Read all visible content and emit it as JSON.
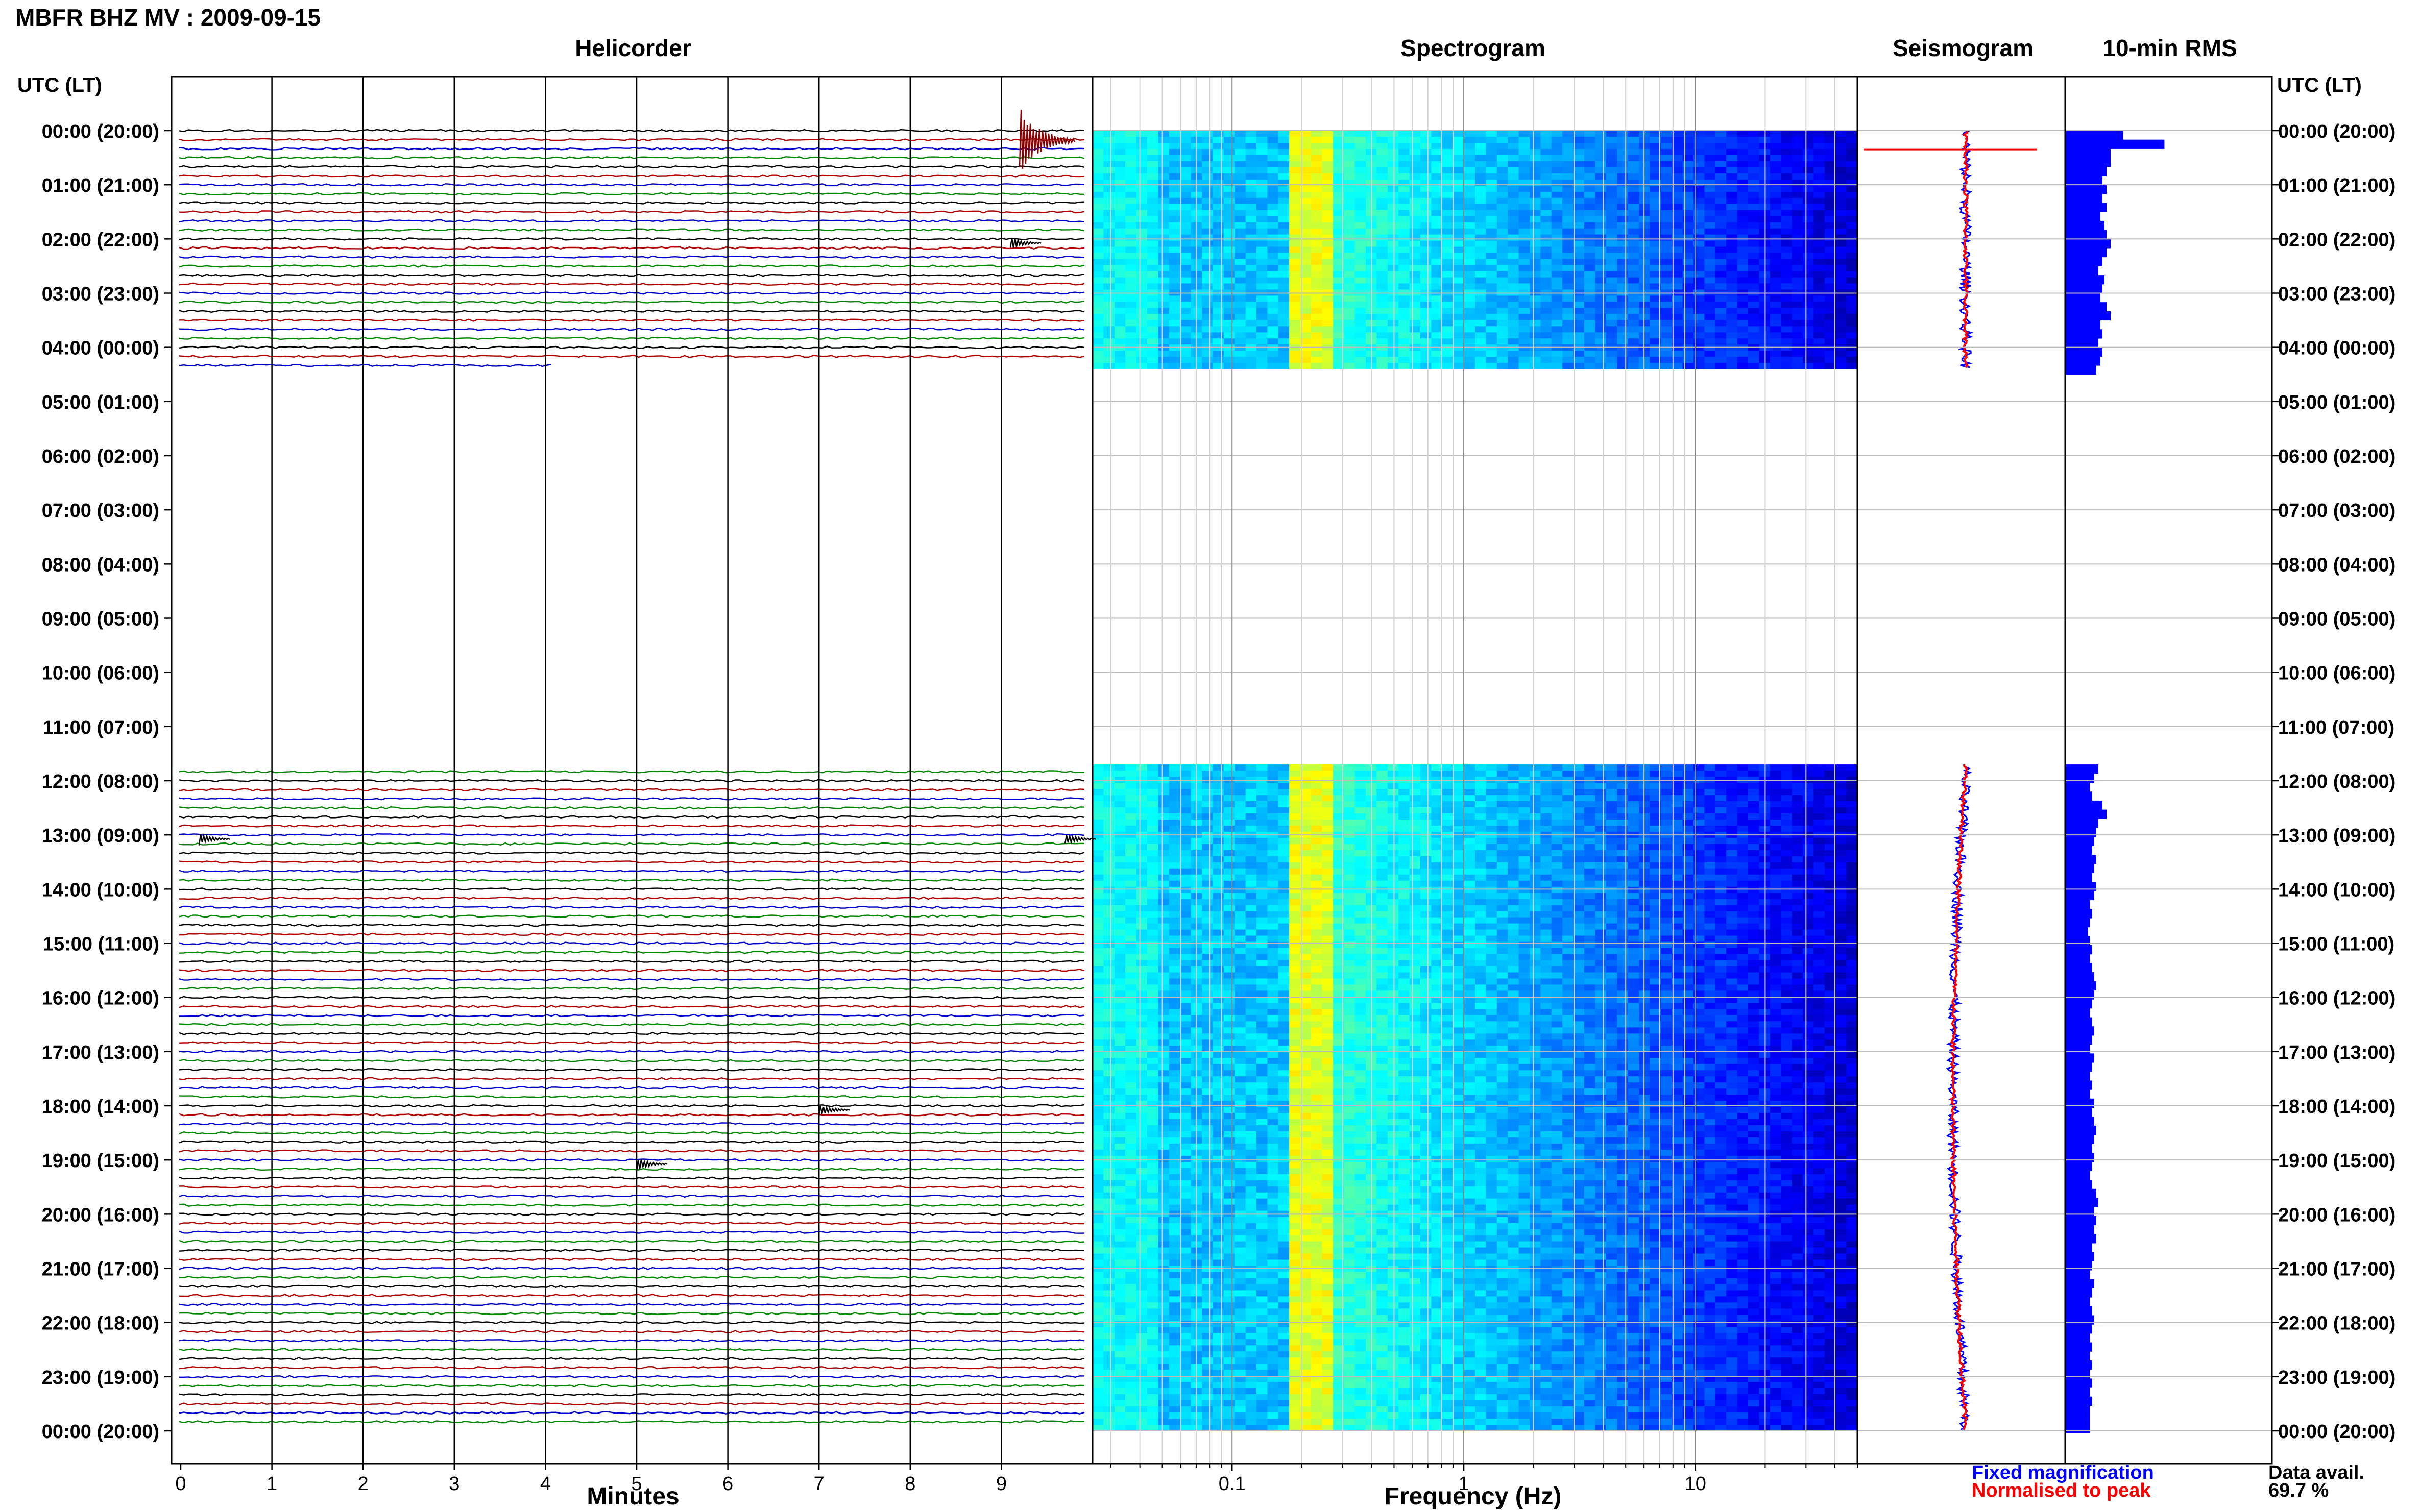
{
  "header": {
    "station_title": "MBFR BHZ MV : 2009-09-15",
    "panel_helicorder": "Helicorder",
    "panel_spectrogram": "Spectrogram",
    "panel_seismogram": "Seismogram",
    "panel_rms": "10-min RMS",
    "time_axis_label": "UTC (LT)"
  },
  "footer": {
    "x_label_minutes": "Minutes",
    "x_label_frequency": "Frequency (Hz)",
    "legend_fixed": "Fixed magnification",
    "legend_normalised": "Normalised to peak",
    "data_avail_label": "Data avail.",
    "data_avail_value": "69.7 %"
  },
  "colors": {
    "trace_cycle": [
      "#000000",
      "#b00000",
      "#0000cc",
      "#008800"
    ],
    "fixed": "#0000ff",
    "normalised": "#ff0000",
    "rms_bar": "#0000ff"
  },
  "chart_data": [
    {
      "panel": "helicorder",
      "type": "line",
      "title": "Helicorder",
      "xlabel": "Minutes",
      "x_ticks": [
        "0",
        "1",
        "2",
        "3",
        "4",
        "5",
        "6",
        "7",
        "8",
        "9"
      ],
      "xlim": [
        0,
        10
      ],
      "y_hour_labels": [
        "00:00 (20:00)",
        "01:00 (21:00)",
        "02:00 (22:00)",
        "03:00 (23:00)",
        "04:00 (00:00)",
        "05:00 (01:00)",
        "06:00 (02:00)",
        "07:00 (03:00)",
        "08:00 (04:00)",
        "09:00 (05:00)",
        "10:00 (06:00)",
        "11:00 (07:00)",
        "12:00 (08:00)",
        "13:00 (09:00)",
        "14:00 (10:00)",
        "15:00 (11:00)",
        "16:00 (12:00)",
        "17:00 (13:00)",
        "18:00 (14:00)",
        "19:00 (15:00)",
        "20:00 (16:00)",
        "21:00 (17:00)",
        "22:00 (18:00)",
        "23:00 (19:00)",
        "00:00 (20:00)"
      ],
      "data_segments_hours": [
        [
          0,
          4.4
        ],
        [
          11.7,
          24
        ]
      ],
      "traces_per_hour": 6,
      "notable_events": [
        {
          "hour_row": 0,
          "minute": 9.2,
          "note": "large event"
        },
        {
          "hour_row": 2,
          "minute": 9.1
        },
        {
          "hour_row": 13,
          "minute": 0.2
        },
        {
          "hour_row": 13,
          "minute": 9.7
        },
        {
          "hour_row": 18,
          "minute": 7.0
        },
        {
          "hour_row": 19,
          "minute": 5.0
        }
      ]
    },
    {
      "panel": "spectrogram",
      "type": "heatmap",
      "title": "Spectrogram",
      "xlabel": "Frequency (Hz)",
      "x_scale": "log",
      "xlim": [
        0.025,
        50
      ],
      "x_ticks": [
        "0.1",
        "1",
        "10"
      ],
      "dominant_band_hz": [
        0.17,
        0.28
      ],
      "colormap": "jet",
      "data_segments_hours": [
        [
          0,
          4.4
        ],
        [
          11.7,
          24
        ]
      ]
    },
    {
      "panel": "seismogram",
      "type": "line",
      "title": "Seismogram",
      "series": [
        {
          "name": "Fixed magnification"
        },
        {
          "name": "Normalised to peak"
        }
      ],
      "data_segments_hours": [
        [
          0,
          4.4
        ],
        [
          11.7,
          24
        ]
      ]
    },
    {
      "panel": "rms",
      "type": "bar",
      "title": "10-min RMS",
      "orientation": "horizontal",
      "bin_minutes": 10,
      "values_first_segment": [
        0.28,
        0.48,
        0.22,
        0.22,
        0.2,
        0.18,
        0.2,
        0.18,
        0.2,
        0.17,
        0.19,
        0.2,
        0.22,
        0.2,
        0.18,
        0.16,
        0.19,
        0.18,
        0.17,
        0.2,
        0.22,
        0.17,
        0.18,
        0.16,
        0.18,
        0.17,
        0.15
      ],
      "values_second_segment": [
        0.16,
        0.14,
        0.12,
        0.13,
        0.18,
        0.2,
        0.16,
        0.15,
        0.14,
        0.13,
        0.15,
        0.14,
        0.13,
        0.15,
        0.14,
        0.12,
        0.13,
        0.12,
        0.11,
        0.12,
        0.13,
        0.12,
        0.13,
        0.14,
        0.15,
        0.14,
        0.13,
        0.12,
        0.13,
        0.14,
        0.13,
        0.12,
        0.14,
        0.13,
        0.12,
        0.13,
        0.12,
        0.14,
        0.13,
        0.14,
        0.15,
        0.14,
        0.13,
        0.14,
        0.13,
        0.12,
        0.13,
        0.15,
        0.16,
        0.14,
        0.15,
        0.14,
        0.15,
        0.13,
        0.14,
        0.13,
        0.12,
        0.14,
        0.13,
        0.12,
        0.13,
        0.14,
        0.13,
        0.12,
        0.13,
        0.12,
        0.13,
        0.12,
        0.13,
        0.12,
        0.13,
        0.12,
        0.12,
        0.12
      ],
      "xlim": [
        0,
        1
      ]
    }
  ]
}
